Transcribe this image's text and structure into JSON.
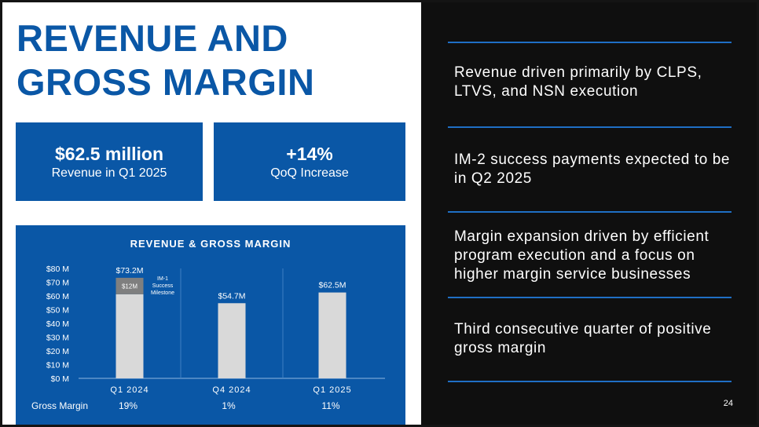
{
  "title_lines": [
    "REVENUE AND",
    "GROSS MARGIN"
  ],
  "kpis": [
    {
      "value": "$62.5 million",
      "label": "Revenue in Q1 2025"
    },
    {
      "value": "+14%",
      "label": "QoQ Increase"
    }
  ],
  "chart_data": {
    "type": "bar",
    "title": "REVENUE & GROSS MARGIN",
    "categories": [
      "Q1 2024",
      "Q4 2024",
      "Q1 2025"
    ],
    "series": [
      {
        "values": [
          61.2,
          54.7,
          62.5
        ]
      },
      {
        "values": [
          12,
          0,
          0
        ]
      }
    ],
    "totals_labels": [
      "$73.2M",
      "$54.7M",
      "$62.5M"
    ],
    "segment_label": "$12M",
    "annotation": "IM-1 Success Milestone",
    "yticks": [
      "$0 M",
      "$10 M",
      "$20 M",
      "$30 M",
      "$40 M",
      "$50 M",
      "$60 M",
      "$70 M",
      "$80 M"
    ],
    "ylim": [
      0,
      80
    ],
    "colors": {
      "base": "#d9d9d9",
      "milestone": "#7f7f7f"
    }
  },
  "gross_margin": {
    "label": "Gross Margin",
    "values": [
      "19%",
      "1%",
      "11%"
    ]
  },
  "bullets": [
    "Revenue driven primarily by CLPS, LTVS, and NSN execution",
    "IM-2 success payments expected to be in Q2 2025",
    "Margin expansion driven by efficient program execution and a focus on higher margin service businesses",
    "Third consecutive quarter of positive gross margin"
  ],
  "page_number": "24",
  "colors": {
    "brand_blue": "#0a57a6",
    "rule_blue": "#1f6fc5",
    "dark_bg": "#0f0f0f"
  }
}
